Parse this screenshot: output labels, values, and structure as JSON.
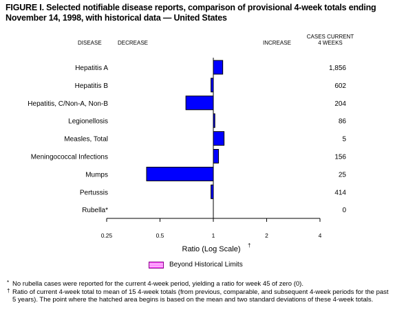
{
  "title": "FIGURE I. Selected notifiable disease reports, comparison of provisional 4-week totals ending November 14, 1998, with historical data — United States",
  "headers": {
    "disease": "DISEASE",
    "decrease": "DECREASE",
    "increase": "INCREASE",
    "cases_line1": "CASES CURRENT",
    "cases_line2": "4 WEEKS"
  },
  "legend": {
    "label": "Beyond Historical Limits",
    "hatch_color": "#ff66ff",
    "hatch_border": "#8a008a"
  },
  "footnotes": [
    {
      "mark": "*",
      "text": "No rubella cases were reported for the current 4-week period, yielding a ratio for week 45 of zero (0)."
    },
    {
      "mark": "†",
      "text": "Ratio of current 4-week total to mean of 15 4-week totals (from previous, comparable, and subsequent 4-week periods for the past 5 years). The point where the hatched area begins is based on the mean and two standard deviations of these 4-week totals."
    }
  ],
  "chart_data": {
    "type": "bar",
    "orientation": "horizontal",
    "xlabel": "Ratio (Log Scale)",
    "xlabel_mark": "†",
    "xscale": "log2",
    "xlim": [
      0.25,
      4
    ],
    "xticks": [
      "0.25",
      "0.5",
      "1",
      "2",
      "4"
    ],
    "xtick_values": [
      0.25,
      0.5,
      1,
      2,
      4
    ],
    "baseline": 1,
    "bar_color": "#0000ff",
    "categories": [
      "Hepatitis A",
      "Hepatitis B",
      "Hepatitis, C/Non-A, Non-B",
      "Legionellosis",
      "Measles, Total",
      "Meningococcal Infections",
      "Mumps",
      "Pertussis",
      "Rubella*"
    ],
    "values": [
      1.13,
      0.97,
      0.7,
      1.02,
      1.15,
      1.07,
      0.42,
      0.97,
      0
    ],
    "cases": [
      "1,856",
      "602",
      "204",
      "86",
      "5",
      "156",
      "25",
      "414",
      "0"
    ]
  }
}
